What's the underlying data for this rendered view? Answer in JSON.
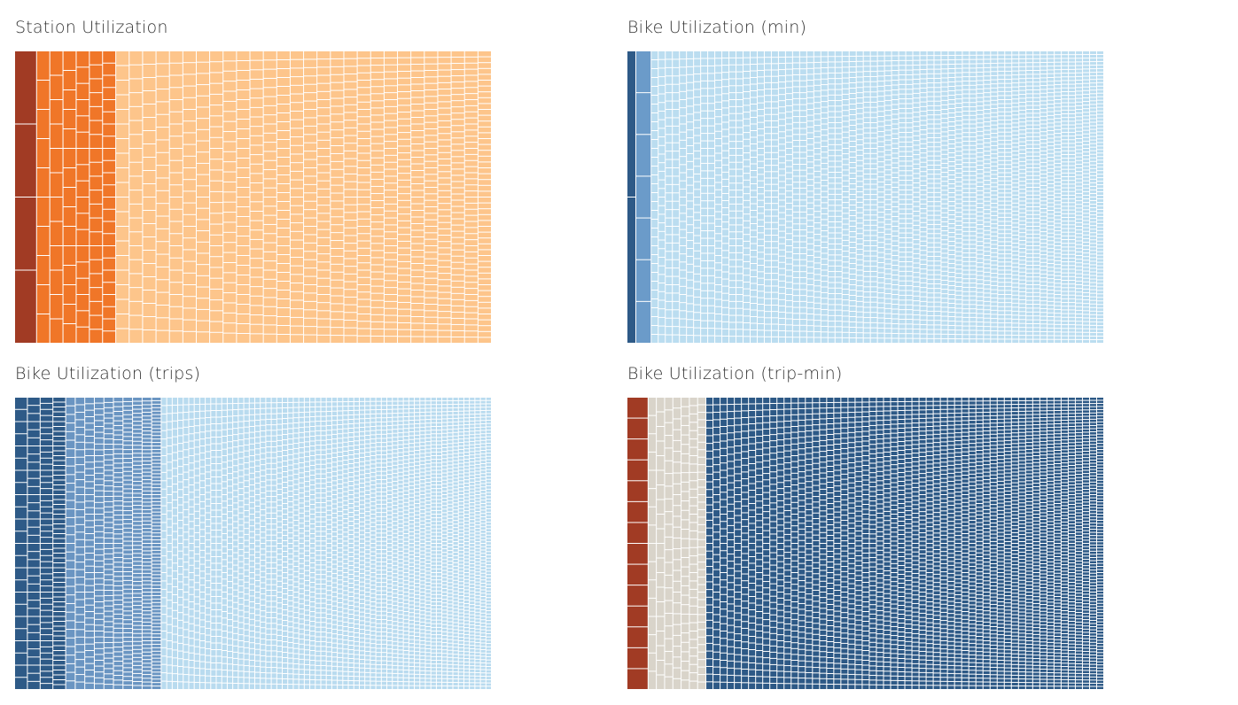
{
  "chart_data": [
    {
      "type": "treemap",
      "title": "Station Utilization",
      "palette": [
        "#a13b24",
        "#f07628",
        "#fdc58b"
      ],
      "groups": [
        {
          "color_index": 0,
          "count": 7,
          "cols": 1
        },
        {
          "color_index": 1,
          "count": 91,
          "cols": 6
        },
        {
          "color_index": 2,
          "count": 900,
          "cols": 28
        }
      ]
    },
    {
      "type": "treemap",
      "title": "Bike Utilization (min)",
      "palette": [
        "#2e5a87",
        "#6b9bc9",
        "#bbddf0"
      ],
      "groups": [
        {
          "color_index": 0,
          "count": 4,
          "cols": 1
        },
        {
          "color_index": 1,
          "count": 12,
          "cols": 1
        },
        {
          "color_index": 2,
          "count": 3500,
          "cols": 64
        }
      ]
    },
    {
      "type": "treemap",
      "title": "Bike Utilization (trips)",
      "palette": [
        "#2e5a87",
        "#6a95c2",
        "#b9dbef"
      ],
      "groups": [
        {
          "color_index": 0,
          "count": 160,
          "cols": 4
        },
        {
          "color_index": 1,
          "count": 560,
          "cols": 10
        },
        {
          "color_index": 2,
          "count": 3500,
          "cols": 60
        }
      ]
    },
    {
      "type": "treemap",
      "title": "Bike Utilization (trip-min)",
      "palette": [
        "#a13b24",
        "#d9d4ca",
        "#2d5986"
      ],
      "groups": [
        {
          "color_index": 0,
          "count": 24,
          "cols": 1
        },
        {
          "color_index": 1,
          "count": 180,
          "cols": 7
        },
        {
          "color_index": 2,
          "count": 3500,
          "cols": 56
        }
      ]
    }
  ]
}
